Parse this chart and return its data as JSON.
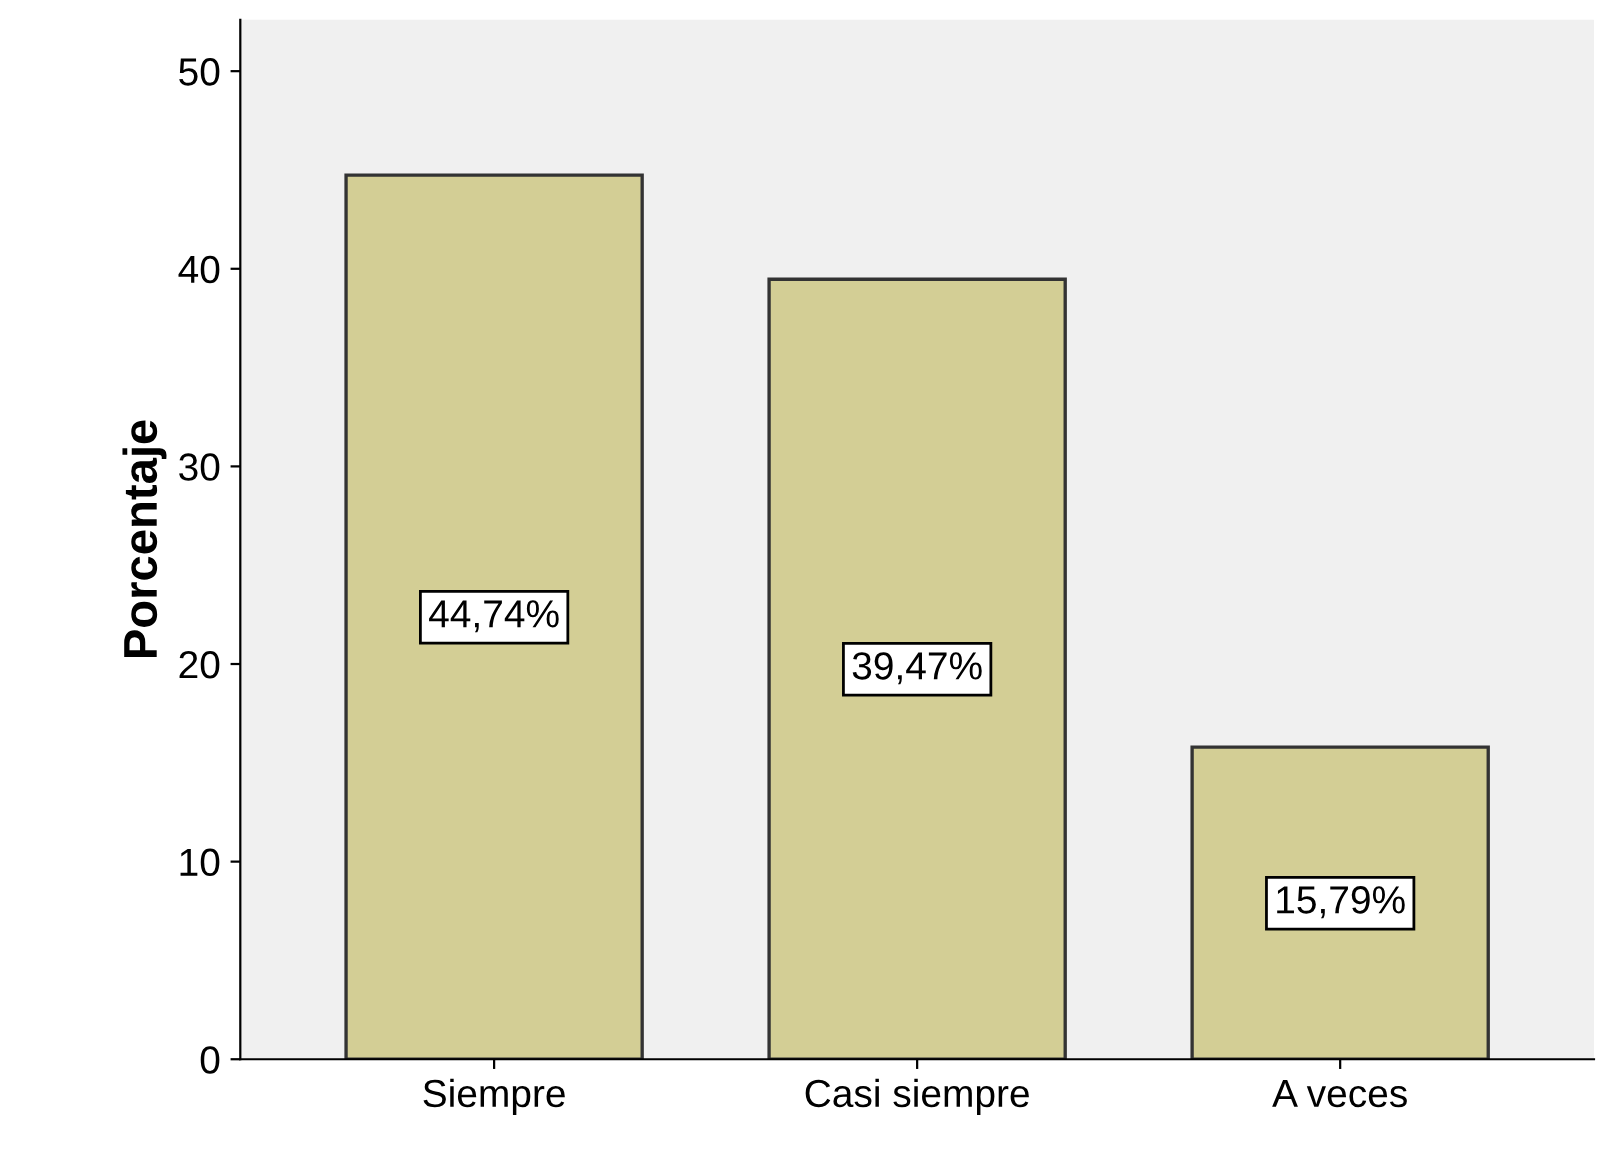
{
  "chart_data": {
    "type": "bar",
    "ylabel": "Porcentaje",
    "categories": [
      "Siempre",
      "Casi siempre",
      "A veces"
    ],
    "values": [
      44.74,
      39.47,
      15.79
    ],
    "value_labels": [
      "44,74%",
      "39,47%",
      "15,79%"
    ],
    "color": "#d3ce95",
    "ylim": [
      0,
      52.6
    ],
    "yticks": [
      0,
      10,
      20,
      30,
      40,
      50
    ],
    "grid": false
  }
}
